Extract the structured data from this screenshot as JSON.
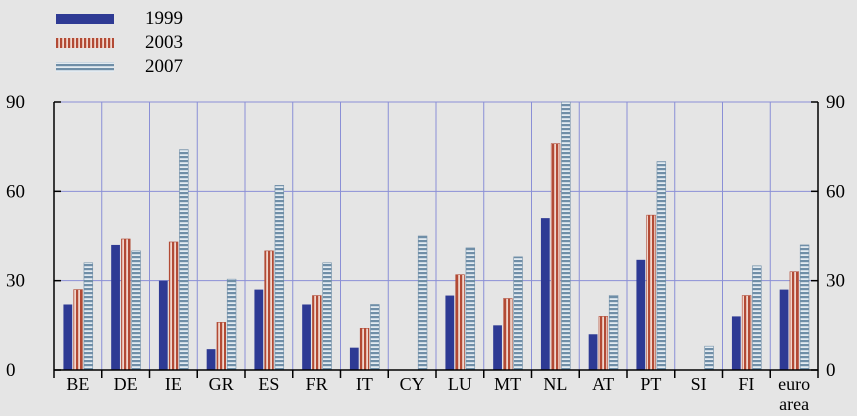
{
  "chart_data": {
    "type": "bar",
    "categories": [
      "BE",
      "DE",
      "IE",
      "GR",
      "ES",
      "FR",
      "IT",
      "CY",
      "LU",
      "MT",
      "NL",
      "AT",
      "PT",
      "SI",
      "FI",
      "euro area"
    ],
    "series": [
      {
        "name": "1999",
        "values": [
          22,
          42,
          30,
          7,
          27,
          22,
          7.5,
          null,
          25,
          15,
          51,
          12,
          37,
          null,
          18,
          27
        ],
        "color": "#2e3a94",
        "pattern": "solid"
      },
      {
        "name": "2003",
        "values": [
          27,
          44,
          43,
          16,
          40,
          25,
          14,
          null,
          32,
          24,
          76,
          18,
          52,
          null,
          25,
          33
        ],
        "color": "#b24a35",
        "pattern": "vertical-stripes"
      },
      {
        "name": "2007",
        "values": [
          36,
          40,
          74,
          30.5,
          62,
          36,
          22,
          45,
          41,
          38,
          90,
          25,
          70,
          8,
          35,
          42
        ],
        "color": "#6f8ea7",
        "pattern": "horizontal-stripes"
      }
    ],
    "ylim": [
      0,
      90
    ],
    "yticks": [
      0,
      30,
      60,
      90
    ],
    "ytick_labels": [
      "0",
      "30",
      "60",
      "90"
    ],
    "right_axis_ticks": true,
    "grid": true,
    "legend_position": "top-left",
    "title": "",
    "xlabel": "",
    "ylabel": ""
  }
}
